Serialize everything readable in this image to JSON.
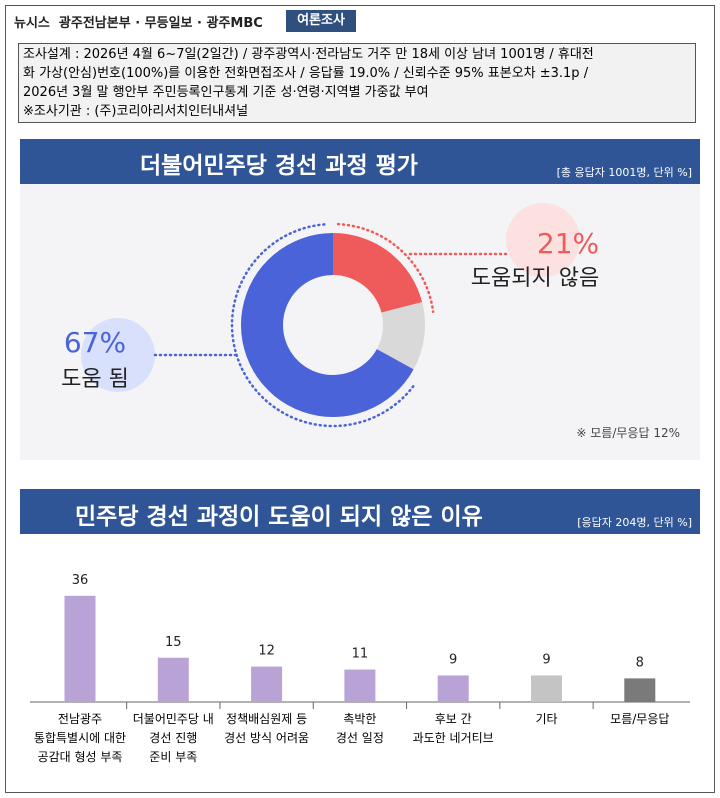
{
  "header": {
    "source": "뉴시스  광주전남본부 · 무등일보 · 광주MBC",
    "tag": "여론조사"
  },
  "methodology": [
    "조사설계 : 2026년 4월 6~7일(2일간) / 광주광역시·전라남도 거주 만 18세 이상 남녀 1001명 / 휴대전",
    "화 가상(안심)번호(100%)를 이용한 전화면접조사 / 응답률 19.0% / 신뢰수준 95% 표본오차 ±3.1p /",
    "2026년 3월 말 행안부 주민등록인구통계 기준 성·연령·지역별 가중값 부여",
    "※조사기관 : (주)코리아리서치인터내셔널"
  ],
  "chart_data": [
    {
      "type": "pie",
      "title": "더불어민주당 경선 과정 평가",
      "subtitle": "[총 응답자 1001명, 단위 %]",
      "categories": [
        "도움 됨",
        "도움되지 않음",
        null
      ],
      "values": [
        67,
        21,
        12
      ],
      "value_labels": [
        "67%",
        "21%",
        null
      ],
      "colors": [
        "#4a63d8",
        "#ef5a5a",
        "#d9d9d9"
      ],
      "note": "※ 모름/무응답 12%"
    },
    {
      "type": "bar",
      "title": "민주당 경선 과정이 도움이 되지 않은 이유",
      "subtitle": "[응답자 204명, 단위 %]",
      "categories": [
        "전남광주\n통합특별시에 대한\n공감대 형성 부족",
        "더불어민주당 내\n경선 진행\n준비 부족",
        "정책배심원제 등\n경선 방식 어려움",
        "촉박한\n경선 일정",
        "후보 간\n과도한 네거티브",
        "기타",
        "모름/무응답"
      ],
      "values": [
        36,
        15,
        12,
        11,
        9,
        9,
        8
      ],
      "colors": [
        "#b9a3d6",
        "#b9a3d6",
        "#b9a3d6",
        "#b9a3d6",
        "#b9a3d6",
        "#c4c4c4",
        "#7a7a7a"
      ]
    }
  ]
}
